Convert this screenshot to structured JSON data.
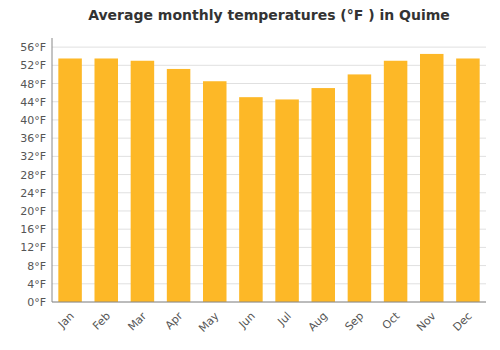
{
  "chart_data": {
    "type": "bar",
    "title": "Average monthly temperatures (°F ) in Quime",
    "categories": [
      "Jan",
      "Feb",
      "Mar",
      "Apr",
      "May",
      "Jun",
      "Jul",
      "Aug",
      "Sep",
      "Oct",
      "Nov",
      "Dec"
    ],
    "values": [
      53.5,
      53.5,
      53.0,
      51.2,
      48.5,
      45.0,
      44.5,
      47.0,
      50.0,
      53.0,
      54.5,
      53.5
    ],
    "color": "#FDB827",
    "ylim": [
      0,
      58
    ],
    "yticks": [
      {
        "value": 0,
        "label": "0°F"
      },
      {
        "value": 4,
        "label": "4°F"
      },
      {
        "value": 8,
        "label": "8°F"
      },
      {
        "value": 12,
        "label": "12°F"
      },
      {
        "value": 16,
        "label": "16°F"
      },
      {
        "value": 20,
        "label": "20°F"
      },
      {
        "value": 24,
        "label": "24°F"
      },
      {
        "value": 28,
        "label": "28°F"
      },
      {
        "value": 32,
        "label": "32°F"
      },
      {
        "value": 36,
        "label": "36°F"
      },
      {
        "value": 40,
        "label": "40°F"
      },
      {
        "value": 44,
        "label": "44°F"
      },
      {
        "value": 48,
        "label": "48°F"
      },
      {
        "value": 52,
        "label": "52°F"
      },
      {
        "value": 56,
        "label": "56°F"
      }
    ],
    "grid": true
  }
}
